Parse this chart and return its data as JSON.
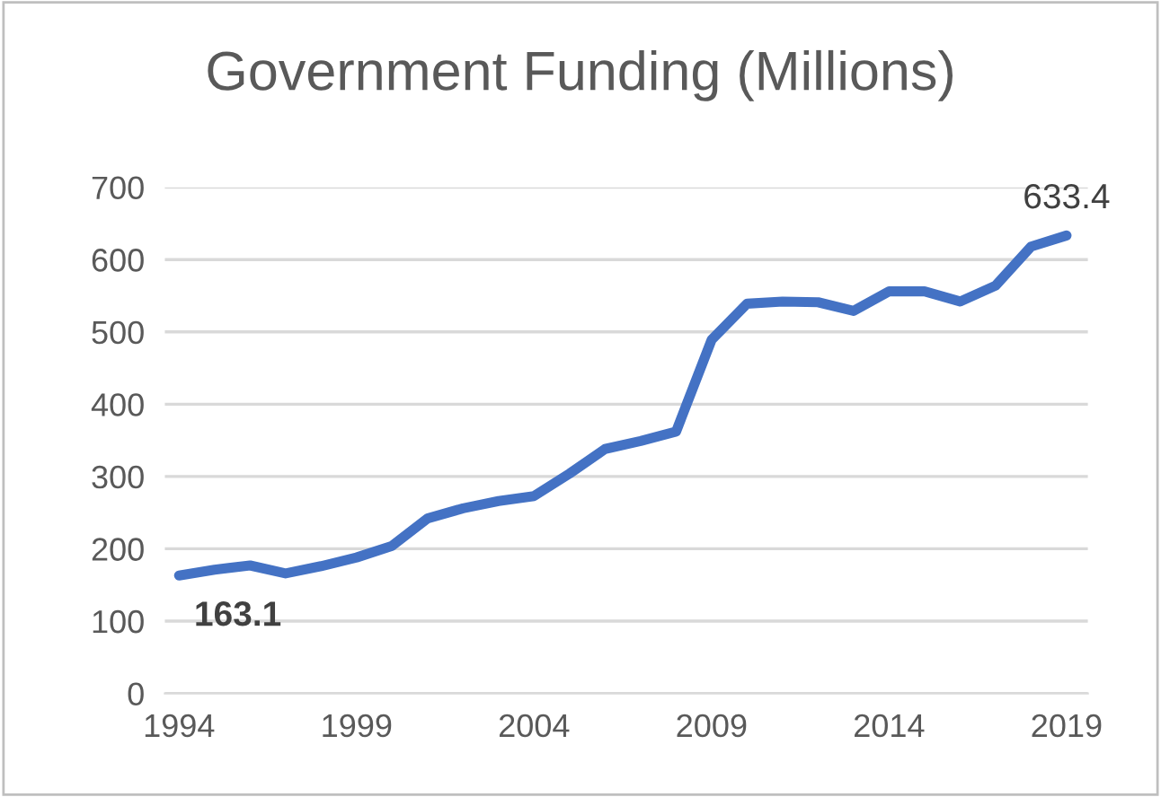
{
  "chart_data": {
    "type": "line",
    "title": "Government Funding (Millions)",
    "x": [
      1994,
      1995,
      1996,
      1997,
      1998,
      1999,
      2000,
      2001,
      2002,
      2003,
      2004,
      2005,
      2006,
      2007,
      2008,
      2009,
      2010,
      2011,
      2012,
      2013,
      2014,
      2015,
      2016,
      2017,
      2018,
      2019
    ],
    "series": [
      {
        "color": "#4472c4",
        "values": [
          163.1,
          171,
          177,
          166,
          176,
          188,
          204,
          242,
          256,
          266,
          273,
          304,
          338,
          349,
          362,
          489,
          539,
          542,
          541,
          529,
          556,
          556,
          542,
          564,
          618,
          633.4
        ],
        "value_labels": [
          "163.1",
          null,
          null,
          null,
          null,
          null,
          null,
          null,
          null,
          null,
          null,
          null,
          null,
          null,
          null,
          null,
          null,
          null,
          null,
          null,
          null,
          null,
          null,
          null,
          null,
          "633.4"
        ]
      }
    ],
    "xlim": [
      1993.6,
      2019.6
    ],
    "xticks": [
      1994,
      1999,
      2004,
      2009,
      2014,
      2019
    ],
    "ylim": [
      0,
      700
    ],
    "yticks": [
      0,
      100,
      200,
      300,
      400,
      500,
      600,
      700
    ],
    "grid": "y",
    "marker": "none",
    "line_style": "solid",
    "legend": false
  }
}
